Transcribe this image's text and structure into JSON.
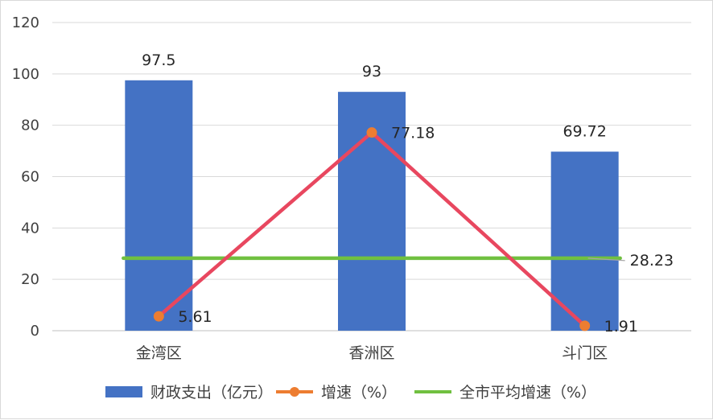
{
  "chart_data": {
    "type": "bar",
    "categories": [
      "金湾区",
      "香洲区",
      "斗门区"
    ],
    "ylim": [
      0,
      120
    ],
    "yticks": [
      0,
      20,
      40,
      60,
      80,
      100,
      120
    ],
    "grid": true,
    "legend_position": "bottom",
    "series": [
      {
        "name": "财政支出（亿元）",
        "type": "bar",
        "values": [
          97.5,
          93,
          69.72
        ],
        "labels": [
          "97.5",
          "93",
          "69.72"
        ],
        "color": "#4472C4"
      },
      {
        "name": "增速（%）",
        "type": "line",
        "values": [
          5.61,
          77.18,
          1.91
        ],
        "labels": [
          "5.61",
          "77.18",
          "1.91"
        ],
        "color": "#E8475F",
        "marker_color": "#ED7D31"
      },
      {
        "name": "全市平均增速（%）",
        "type": "line",
        "values": [
          28.23,
          28.23,
          28.23
        ],
        "labels": [
          "",
          "",
          "28.23"
        ],
        "color": "#70C040"
      }
    ]
  }
}
